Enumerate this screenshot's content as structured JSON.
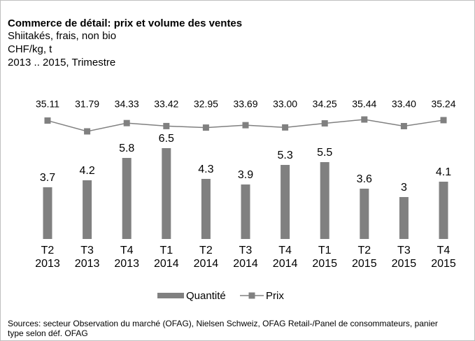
{
  "chart_data": {
    "type": "bar",
    "title": "Commerce de détail: prix et volume des ventes",
    "subtitle": [
      "Shiitakés, frais, non bio",
      "CHF/kg, t",
      "2013 .. 2015, Trimestre"
    ],
    "categories": [
      "T2 2013",
      "T3 2013",
      "T4 2013",
      "T1 2014",
      "T2 2014",
      "T3 2014",
      "T4 2014",
      "T1 2015",
      "T2 2015",
      "T3 2015",
      "T4 2015"
    ],
    "series": [
      {
        "name": "Quantité",
        "type": "bar",
        "color": "#808080",
        "values": [
          3.7,
          4.2,
          5.8,
          6.5,
          4.3,
          3.9,
          5.3,
          5.5,
          3.6,
          3,
          4.1
        ]
      },
      {
        "name": "Prix",
        "type": "line",
        "color": "#808080",
        "values": [
          35.11,
          31.79,
          34.33,
          33.42,
          32.95,
          33.69,
          33.0,
          34.25,
          35.44,
          33.4,
          35.24
        ],
        "value_labels": [
          "35.11",
          "31.79",
          "34.33",
          "33.42",
          "32.95",
          "33.69",
          "33.00",
          "34.25",
          "35.44",
          "33.40",
          "35.24"
        ]
      }
    ],
    "source": "Sources: secteur Observation du marché (OFAG), Nielsen Schweiz, OFAG Retail-/Panel de consommateurs, panier type selon déf. OFAG"
  }
}
